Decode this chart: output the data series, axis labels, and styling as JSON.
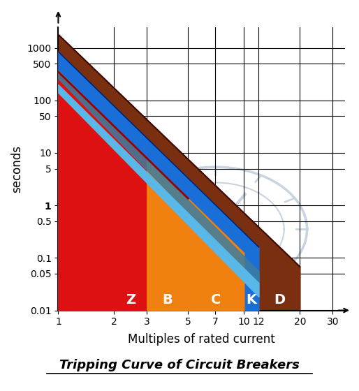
{
  "title": "Tripping Curve of Circuit Breakers",
  "xlabel": "Multiples of rated current",
  "ylabel": "seconds",
  "xlim": [
    1,
    35
  ],
  "ylim": [
    0.01,
    2500
  ],
  "xticks": [
    1,
    2,
    3,
    5,
    7,
    10,
    12,
    20,
    30
  ],
  "yticks": [
    0.01,
    0.05,
    0.1,
    0.5,
    1,
    5,
    10,
    50,
    100,
    500,
    1000
  ],
  "ytick_labels": [
    "0.01",
    "0.05",
    "0.1",
    "0.5",
    "1",
    "5",
    "10",
    "50",
    "100",
    "500",
    "1000"
  ],
  "zones": [
    {
      "label": "Z",
      "x_min": 2,
      "x_max": 3,
      "color": "#1a6ed8"
    },
    {
      "label": "B",
      "x_min": 3,
      "x_max": 5,
      "color": "#dd1111"
    },
    {
      "label": "C",
      "x_min": 5,
      "x_max": 10,
      "color": "#f08010"
    },
    {
      "label": "K",
      "x_min": 10,
      "x_max": 12,
      "color": "#3a7da0"
    },
    {
      "label": "D",
      "x_min": 12,
      "x_max": 20,
      "color": "#7a3010"
    }
  ],
  "bg_color": "#ffffff",
  "col_brown": "#7a3010",
  "col_blue": "#1a6ed8",
  "col_red": "#dd1111",
  "col_orange": "#f08010",
  "col_sky": "#5ab8e8",
  "col_steelblue": "#3a7da0",
  "col_darkbrown": "#3a0800",
  "col_darkblue": "#0a2060",
  "wm_color": "#c8d4e0",
  "tick_fontsize": 10,
  "label_fontsize": 12,
  "zone_fontsize": 14,
  "title_fontsize": 13,
  "k_ou": 1800,
  "n_ou": 3.4,
  "k_bu": 850,
  "n_bu": 3.45,
  "k_ru": 350,
  "n_ru": 3.45,
  "k_lbu": 380,
  "n_lbu": 3.55,
  "k_lbl": 260,
  "n_lbl": 3.65,
  "k_sblu": 200,
  "n_sblu": 3.5,
  "k_sblul": 140,
  "n_sblul": 3.6
}
